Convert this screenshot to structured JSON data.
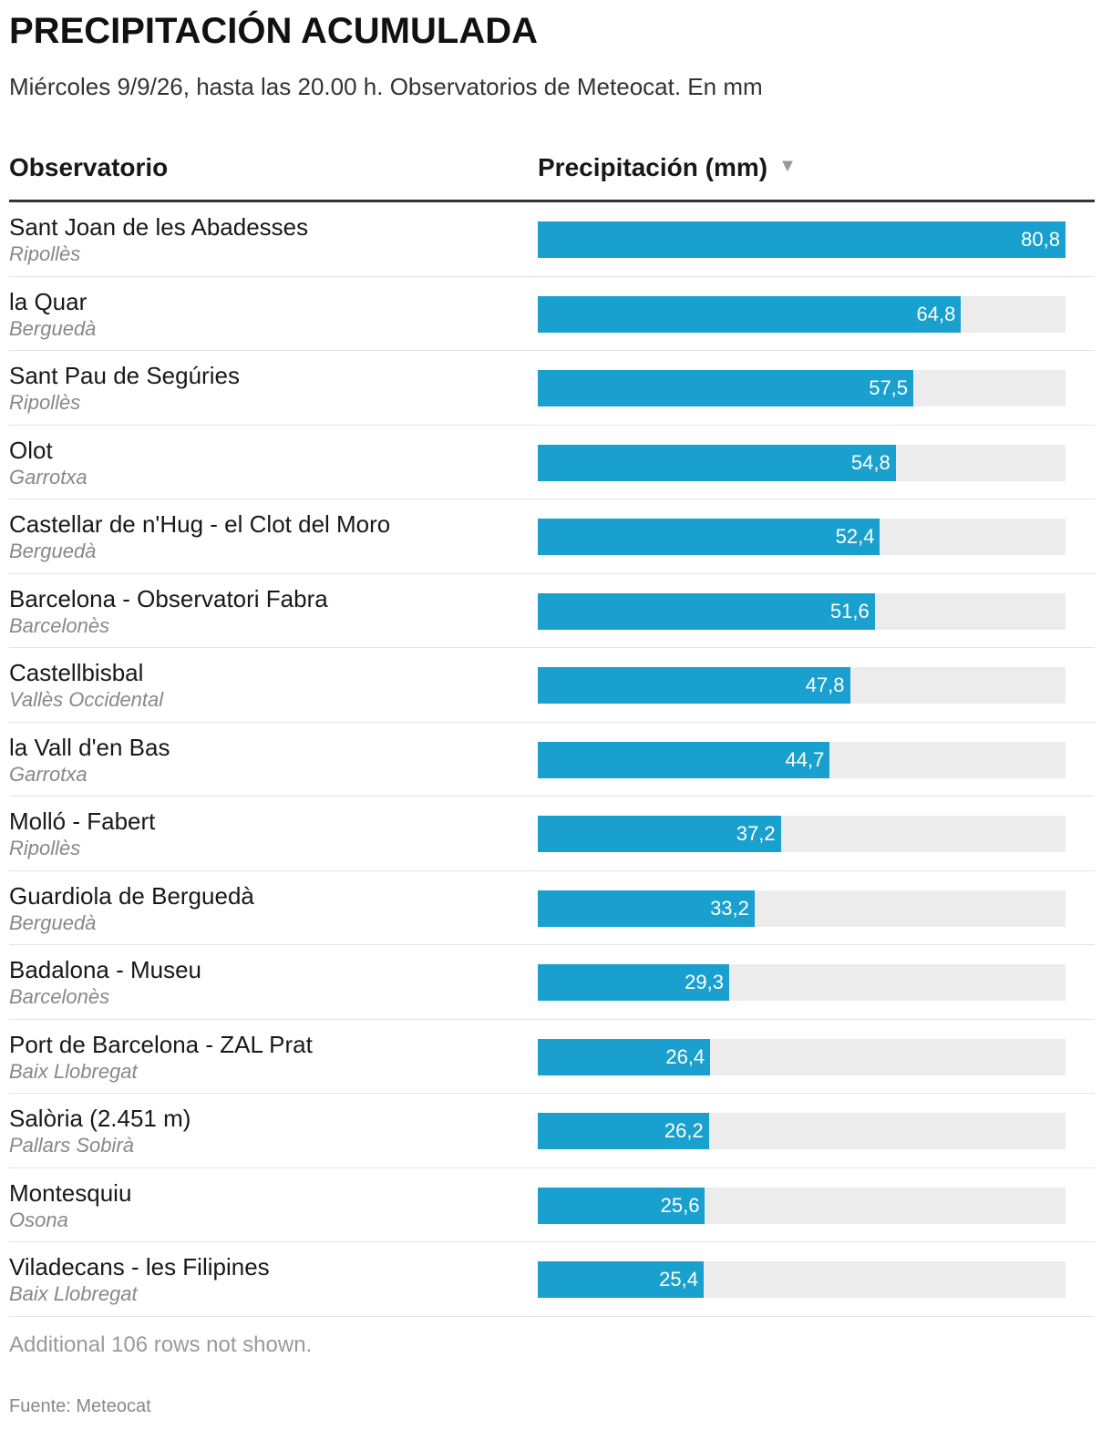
{
  "title": "PRECIPITACIÓN ACUMULADA",
  "subtitle": "Miércoles 9/9/26, hasta las 20.00 h. Observatorios de Meteocat. En mm",
  "columns": {
    "observatorio": "Observatorio",
    "precipitacion": "Precipitación (mm)",
    "sort_icon": "sort-descending-icon"
  },
  "colors": {
    "bar": "#1aa0ce",
    "track": "#ececec"
  },
  "chart_data": {
    "type": "bar",
    "orientation": "horizontal",
    "value_max": 80.8,
    "rows": [
      {
        "name": "Sant Joan de les Abadesses",
        "region": "Ripollès",
        "value": 80.8,
        "label": "80,8"
      },
      {
        "name": "la Quar",
        "region": "Berguedà",
        "value": 64.8,
        "label": "64,8"
      },
      {
        "name": "Sant Pau de Segúries",
        "region": "Ripollès",
        "value": 57.5,
        "label": "57,5"
      },
      {
        "name": "Olot",
        "region": "Garrotxa",
        "value": 54.8,
        "label": "54,8"
      },
      {
        "name": "Castellar de n'Hug - el Clot del Moro",
        "region": "Berguedà",
        "value": 52.4,
        "label": "52,4"
      },
      {
        "name": "Barcelona - Observatori Fabra",
        "region": "Barcelonès",
        "value": 51.6,
        "label": "51,6"
      },
      {
        "name": "Castellbisbal",
        "region": "Vallès Occidental",
        "value": 47.8,
        "label": "47,8"
      },
      {
        "name": "la Vall d'en Bas",
        "region": "Garrotxa",
        "value": 44.7,
        "label": "44,7"
      },
      {
        "name": "Molló - Fabert",
        "region": "Ripollès",
        "value": 37.2,
        "label": "37,2"
      },
      {
        "name": "Guardiola de Berguedà",
        "region": "Berguedà",
        "value": 33.2,
        "label": "33,2"
      },
      {
        "name": "Badalona - Museu",
        "region": "Barcelonès",
        "value": 29.3,
        "label": "29,3"
      },
      {
        "name": "Port de Barcelona - ZAL Prat",
        "region": "Baix Llobregat",
        "value": 26.4,
        "label": "26,4"
      },
      {
        "name": "Salòria (2.451 m)",
        "region": "Pallars Sobirà",
        "value": 26.2,
        "label": "26,2"
      },
      {
        "name": "Montesquiu",
        "region": "Osona",
        "value": 25.6,
        "label": "25,6"
      },
      {
        "name": "Viladecans - les Filipines",
        "region": "Baix Llobregat",
        "value": 25.4,
        "label": "25,4"
      }
    ]
  },
  "note": "Additional 106 rows not shown.",
  "source": "Fuente: Meteocat"
}
